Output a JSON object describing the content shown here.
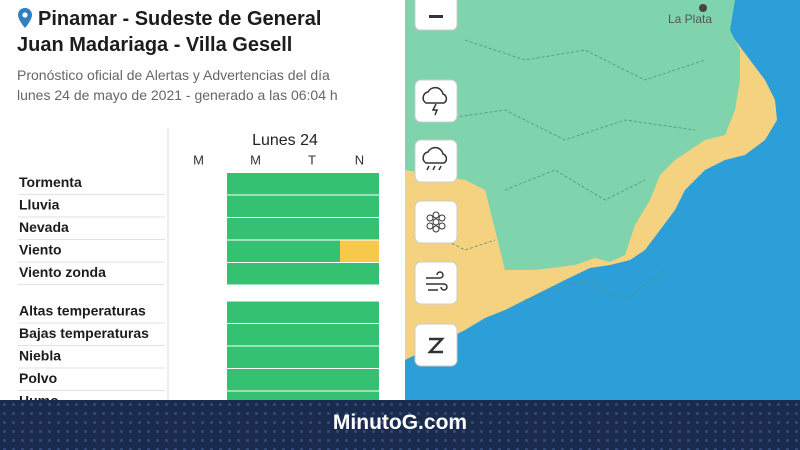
{
  "header": {
    "title": [
      "Pinamar - Sudeste de General",
      "Juan Madariaga - Villa Gesell"
    ],
    "subtitle": [
      "Pronóstico oficial de Alertas y Advertencias del día",
      "lunes 24 de mayo de 2021 - generado a las 06:04 h"
    ]
  },
  "table": {
    "day": "Lunes 24",
    "columns": [
      "M",
      "M",
      "T",
      "N"
    ],
    "groups": [
      {
        "rows": [
          {
            "label": "Tormenta",
            "cells": [
              null,
              "#34c172",
              "#34c172",
              "#34c172"
            ]
          },
          {
            "label": "Lluvia",
            "cells": [
              null,
              "#34c172",
              "#34c172",
              "#34c172"
            ]
          },
          {
            "label": "Nevada",
            "cells": [
              null,
              "#34c172",
              "#34c172",
              "#34c172"
            ]
          },
          {
            "label": "Viento",
            "cells": [
              null,
              "#34c172",
              "#34c172",
              "#f7c94b"
            ]
          },
          {
            "label": "Viento zonda",
            "cells": [
              null,
              "#34c172",
              "#34c172",
              "#34c172"
            ]
          }
        ]
      },
      {
        "rows": [
          {
            "label": "Altas temperaturas",
            "cells": [
              null,
              "#34c172",
              "#34c172",
              "#34c172"
            ]
          },
          {
            "label": "Bajas temperaturas",
            "cells": [
              null,
              "#34c172",
              "#34c172",
              "#34c172"
            ]
          },
          {
            "label": "Niebla",
            "cells": [
              null,
              "#34c172",
              "#34c172",
              "#34c172"
            ]
          },
          {
            "label": "Polvo",
            "cells": [
              null,
              "#34c172",
              "#34c172",
              "#34c172"
            ]
          },
          {
            "label": "Humo",
            "cells": [
              null,
              "#34c172",
              "#34c172",
              "#34c172"
            ]
          }
        ]
      }
    ]
  },
  "map": {
    "labels": [
      "La Plata"
    ]
  },
  "banner": {
    "brand": "MinutoG.com"
  }
}
